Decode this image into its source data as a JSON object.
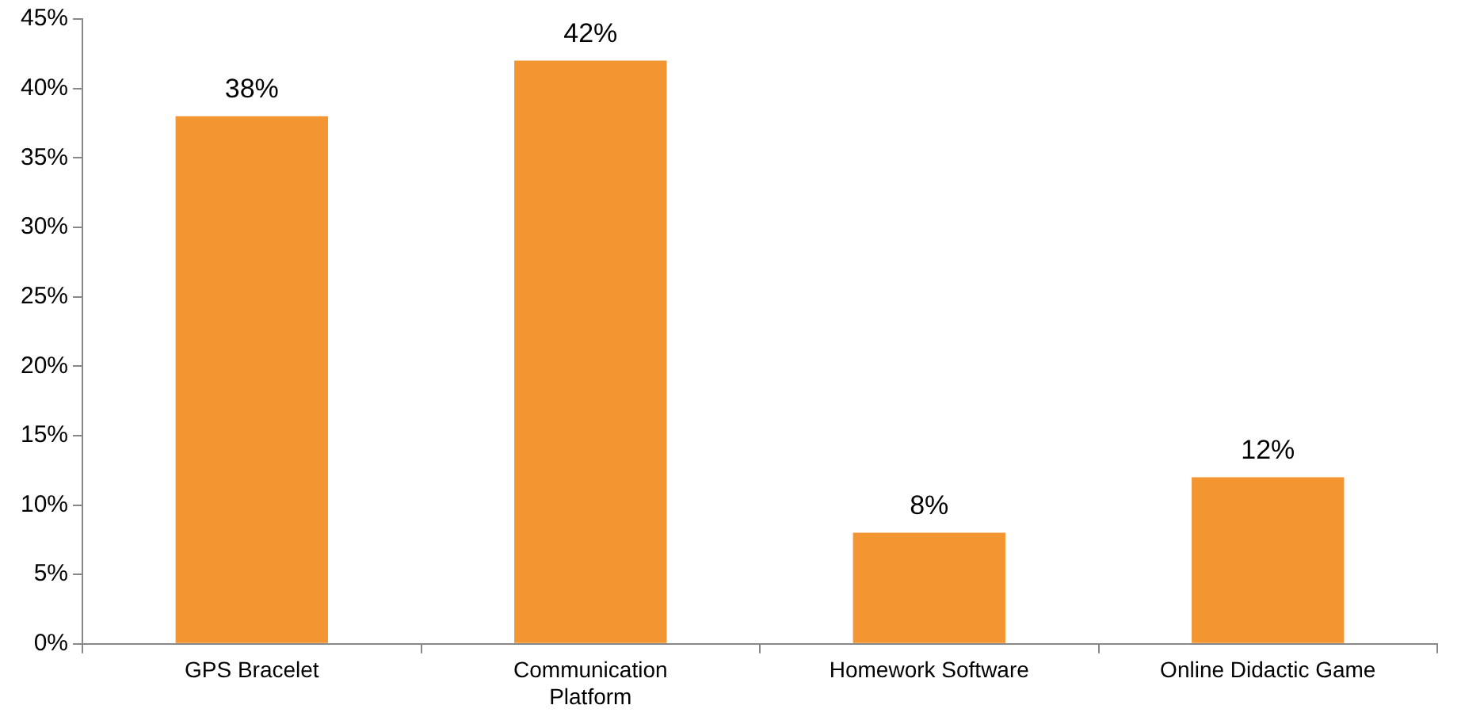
{
  "chart_data": {
    "type": "bar",
    "categories": [
      "GPS Bracelet",
      "Communication Platform",
      "Homework Software",
      "Online Didactic Game"
    ],
    "values": [
      38,
      42,
      8,
      12
    ],
    "color": "#f39530",
    "value_labels": [
      "38%",
      "42%",
      "8%",
      "12%"
    ],
    "ylim": [
      0,
      45
    ],
    "yticks": [
      {
        "value": 0,
        "label": "0%"
      },
      {
        "value": 5,
        "label": "5%"
      },
      {
        "value": 10,
        "label": "10%"
      },
      {
        "value": 15,
        "label": "15%"
      },
      {
        "value": 20,
        "label": "20%"
      },
      {
        "value": 25,
        "label": "25%"
      },
      {
        "value": 30,
        "label": "30%"
      },
      {
        "value": 35,
        "label": "35%"
      },
      {
        "value": 40,
        "label": "40%"
      },
      {
        "value": 45,
        "label": "45%"
      }
    ],
    "grid": false,
    "legend": false
  }
}
